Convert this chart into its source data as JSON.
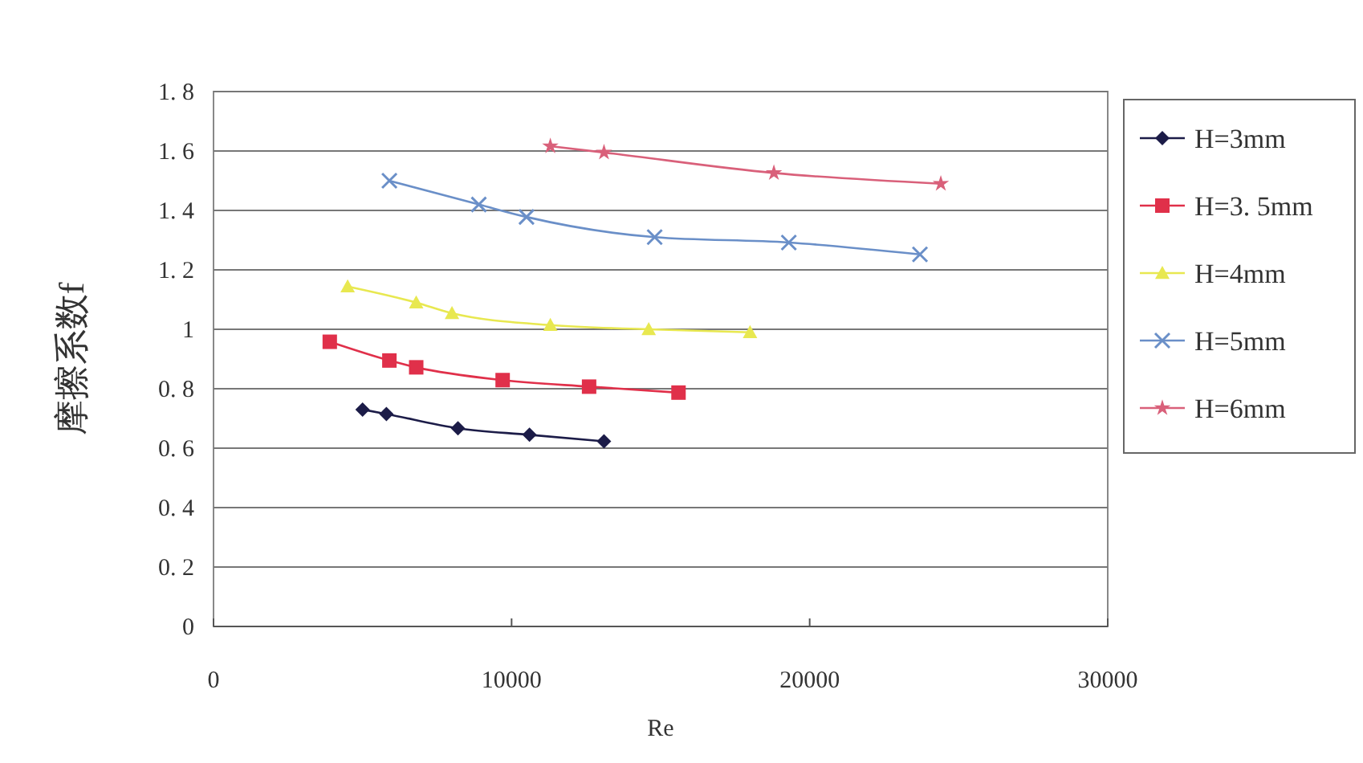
{
  "chart_data": {
    "type": "line",
    "xlabel": "Re",
    "ylabel": "摩擦系数f",
    "xlim": [
      0,
      30000
    ],
    "xticks": [
      0,
      10000,
      20000,
      30000
    ],
    "ylim": [
      0,
      1.8
    ],
    "yticks": [
      0,
      {
        "value": 0.2,
        "label": "0. 2"
      },
      {
        "value": 0.4,
        "label": "0. 4"
      },
      {
        "value": 0.6,
        "label": "0. 6"
      },
      {
        "value": 0.8,
        "label": "0. 8"
      },
      1,
      {
        "value": 1.2,
        "label": "1. 2"
      },
      {
        "value": 1.4,
        "label": "1. 4"
      },
      {
        "value": 1.6,
        "label": "1. 6"
      },
      {
        "value": 1.8,
        "label": "1. 8"
      }
    ],
    "grid": "y",
    "legend": "right",
    "series": [
      {
        "name": "H=3mm",
        "color": "#1c1c48",
        "marker": "diamond",
        "x": [
          5000,
          5800,
          8200,
          10600,
          13100
        ],
        "values": [
          0.73,
          0.715,
          0.667,
          0.645,
          0.623
        ]
      },
      {
        "name": "H=3. 5mm",
        "color": "#e0304a",
        "marker": "square",
        "x": [
          3900,
          5900,
          6800,
          9700,
          12600,
          15600
        ],
        "values": [
          0.958,
          0.895,
          0.872,
          0.829,
          0.807,
          0.787
        ]
      },
      {
        "name": "H=4mm",
        "color": "#e8e850",
        "marker": "triangle",
        "x": [
          4500,
          6800,
          8000,
          11300,
          14600,
          18000
        ],
        "values": [
          1.144,
          1.09,
          1.054,
          1.014,
          1.0,
          0.99
        ]
      },
      {
        "name": "H=5mm",
        "color": "#6a8fc8",
        "marker": "cross",
        "x": [
          5900,
          8900,
          10500,
          14800,
          19300,
          23700
        ],
        "values": [
          1.5,
          1.42,
          1.378,
          1.31,
          1.292,
          1.252
        ]
      },
      {
        "name": "H=6mm",
        "color": "#d9607a",
        "marker": "star",
        "x": [
          11300,
          13100,
          18800,
          24400
        ],
        "values": [
          1.616,
          1.595,
          1.526,
          1.49
        ]
      }
    ]
  }
}
